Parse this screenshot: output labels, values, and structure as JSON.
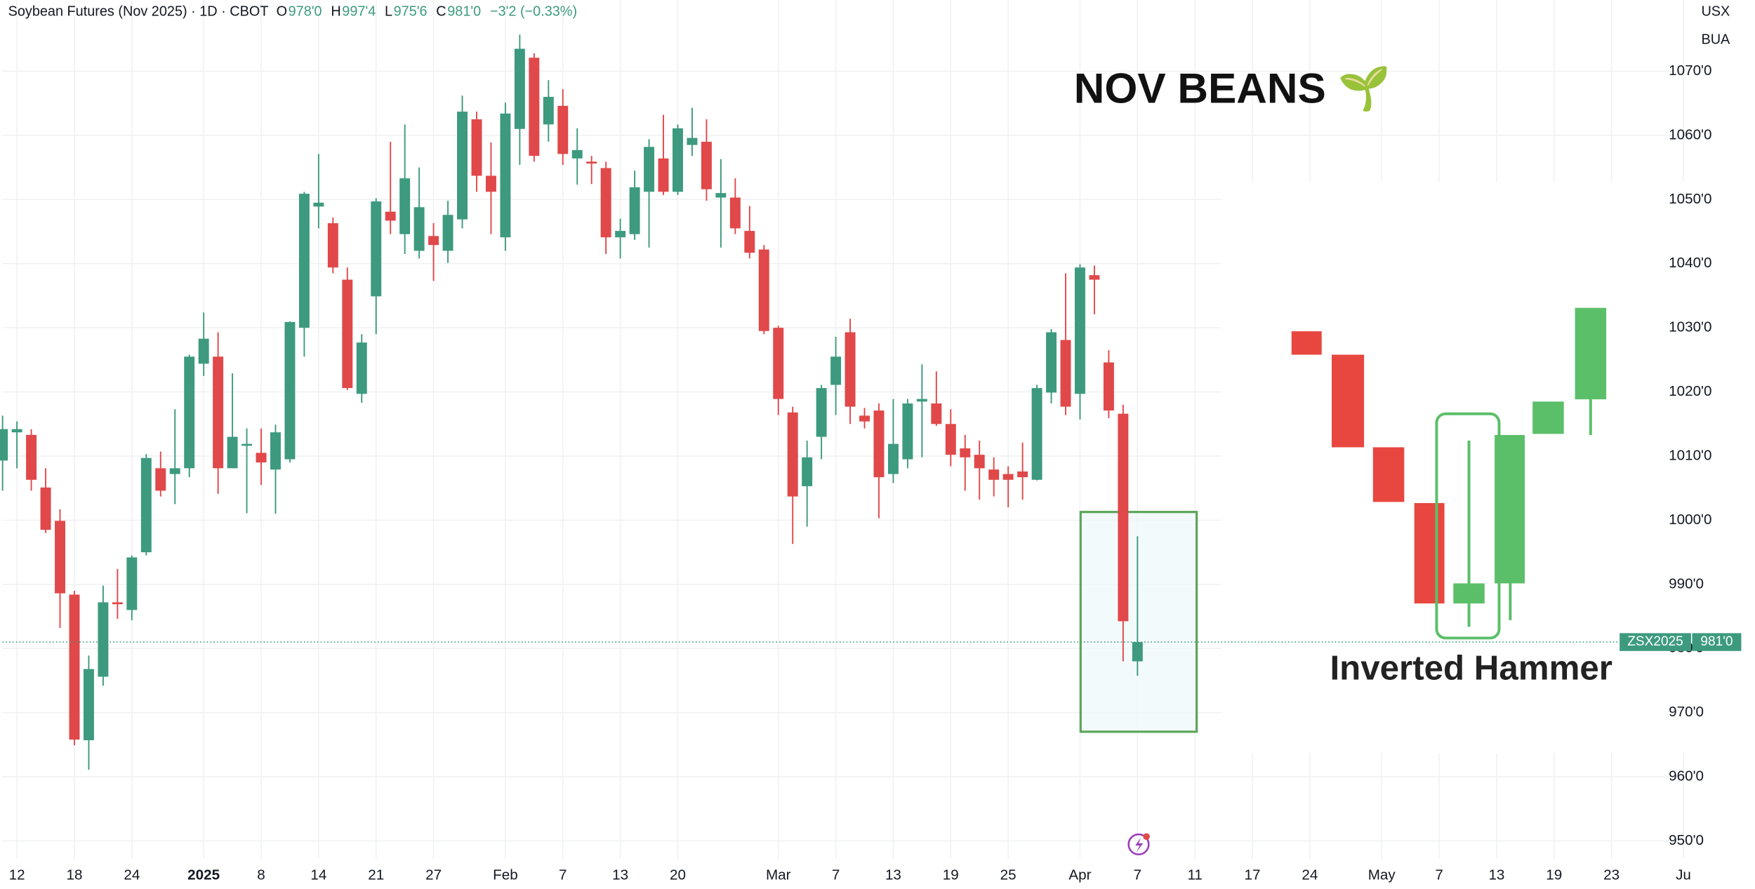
{
  "chart_data": {
    "type": "candlestick",
    "title": "Soybean Futures (Nov 2025) · 1D · CBOT",
    "ohlc_legend": [
      {
        "key": "O",
        "text": "978'0"
      },
      {
        "key": "H",
        "text": "997'4"
      },
      {
        "key": "L",
        "text": "975'6"
      },
      {
        "key": "C",
        "text": "981'0"
      }
    ],
    "change": "−3'2 (−0.33%)",
    "currency": "USX",
    "unit": "BUA",
    "annotation_title": "NOV BEANS 🌱",
    "annotation_pattern": "Inverted Hammer",
    "symbol_label": "ZSX2025",
    "last_price_label": "981'0",
    "up_color": "#3d9a7f",
    "down_color": "#e0484a",
    "grid": true,
    "xlim": [
      0,
      117.3
    ],
    "ylim": [
      947.2,
      1081.1
    ],
    "yticks": [
      {
        "value": 950,
        "label": "950'0"
      },
      {
        "value": 960,
        "label": "960'0"
      },
      {
        "value": 970,
        "label": "970'0"
      },
      {
        "value": 980,
        "label": "980'0"
      },
      {
        "value": 990,
        "label": "990'0"
      },
      {
        "value": 1000,
        "label": "1000'0"
      },
      {
        "value": 1010,
        "label": "1010'0"
      },
      {
        "value": 1020,
        "label": "1020'0"
      },
      {
        "value": 1030,
        "label": "1030'0"
      },
      {
        "value": 1040,
        "label": "1040'0"
      },
      {
        "value": 1050,
        "label": "1050'0"
      },
      {
        "value": 1060,
        "label": "1060'0"
      },
      {
        "value": 1070,
        "label": "1070'0"
      }
    ],
    "xticks": [
      {
        "value": 1,
        "label": "12"
      },
      {
        "value": 5,
        "label": "18"
      },
      {
        "value": 9,
        "label": "24"
      },
      {
        "value": 14,
        "label": "2025"
      },
      {
        "value": 18,
        "label": "8"
      },
      {
        "value": 22,
        "label": "14"
      },
      {
        "value": 26,
        "label": "21"
      },
      {
        "value": 30,
        "label": "27"
      },
      {
        "value": 35,
        "label": "Feb"
      },
      {
        "value": 39,
        "label": "7"
      },
      {
        "value": 43,
        "label": "13"
      },
      {
        "value": 47,
        "label": "20"
      },
      {
        "value": 54,
        "label": "Mar"
      },
      {
        "value": 58,
        "label": "7"
      },
      {
        "value": 62,
        "label": "13"
      },
      {
        "value": 66,
        "label": "19"
      },
      {
        "value": 70,
        "label": "25"
      },
      {
        "value": 75,
        "label": "Apr"
      },
      {
        "value": 79,
        "label": "7"
      },
      {
        "value": 83,
        "label": "11"
      },
      {
        "value": 87,
        "label": "17"
      },
      {
        "value": 91,
        "label": "24"
      },
      {
        "value": 96,
        "label": "May"
      },
      {
        "value": 100,
        "label": "7"
      },
      {
        "value": 104,
        "label": "13"
      },
      {
        "value": 108,
        "label": "19"
      },
      {
        "value": 112,
        "label": "23"
      },
      {
        "value": 117,
        "label": "Ju"
      }
    ],
    "x": [
      0,
      1,
      2,
      3,
      4,
      5,
      6,
      7,
      8,
      9,
      10,
      11,
      12,
      13,
      14,
      15,
      16,
      17,
      18,
      19,
      20,
      21,
      22,
      23,
      24,
      25,
      26,
      27,
      28,
      29,
      30,
      31,
      32,
      33,
      34,
      35,
      36,
      37,
      38,
      39,
      40,
      41,
      42,
      43,
      44,
      45,
      46,
      47,
      48,
      49,
      50,
      51,
      52,
      53,
      54,
      55,
      56,
      57,
      58,
      59,
      60,
      61,
      62,
      63,
      64,
      65,
      66,
      67,
      68,
      69,
      70,
      71,
      72,
      73,
      74,
      75,
      76,
      77,
      78,
      79
    ],
    "open": [
      1009.3,
      1013.7,
      1013.3,
      1005.1,
      999.9,
      988.4,
      965.7,
      975.6,
      987.2,
      986.0,
      995.0,
      1008.1,
      1007.2,
      1008.1,
      1024.4,
      1025.5,
      1008.1,
      1011.6,
      1010.5,
      1007.9,
      1009.5,
      1030.0,
      1048.9,
      1046.3,
      1037.5,
      1019.7,
      1034.9,
      1048.1,
      1044.6,
      1042.0,
      1044.3,
      1042.0,
      1046.9,
      1062.5,
      1053.7,
      1044.1,
      1061.0,
      1072.1,
      1061.7,
      1064.6,
      1056.4,
      1055.9,
      1054.9,
      1044.1,
      1044.6,
      1051.2,
      1056.4,
      1051.2,
      1058.5,
      1059.0,
      1050.3,
      1050.3,
      1045.1,
      1042.2,
      1030.0,
      1016.8,
      1005.3,
      1013.0,
      1021.1,
      1029.3,
      1016.3,
      1017.1,
      1007.2,
      1009.5,
      1018.5,
      1018.2,
      1015.0,
      1011.2,
      1010.2,
      1007.9,
      1007.2,
      1007.6,
      1006.3,
      1019.9,
      1028.1,
      1019.7,
      1038.2,
      1024.6,
      1016.6,
      978
    ],
    "high": [
      1016.3,
      1015.4,
      1014.2,
      1008.1,
      1001.7,
      989.0,
      978.9,
      989.8,
      992.4,
      994.5,
      1010.3,
      1010.7,
      1017.3,
      1025.8,
      1032.4,
      1029.3,
      1022.9,
      1014.3,
      1014.3,
      1014.9,
      1031.0,
      1051.2,
      1057.1,
      1047.2,
      1039.4,
      1029.0,
      1050.2,
      1059.0,
      1061.7,
      1055.0,
      1046.3,
      1049.8,
      1066.2,
      1063.7,
      1058.9,
      1065.1,
      1075.7,
      1072.8,
      1068.6,
      1067.2,
      1061.1,
      1056.8,
      1055.9,
      1047.0,
      1054.5,
      1059.4,
      1063.2,
      1061.7,
      1064.3,
      1062.5,
      1056.3,
      1053.3,
      1049.0,
      1042.9,
      1030.3,
      1017.7,
      1012.4,
      1021.1,
      1028.6,
      1031.4,
      1017.5,
      1018.2,
      1018.9,
      1018.9,
      1024.3,
      1023.2,
      1017.3,
      1013.3,
      1012.4,
      1009.8,
      1008.4,
      1012.1,
      1021.1,
      1029.8,
      1038.5,
      1039.9,
      1039.7,
      1026.5,
      1018.0,
      997.5
    ],
    "low": [
      1004.6,
      1008.1,
      1004.6,
      998.0,
      983.2,
      964.9,
      961.1,
      974.2,
      984.6,
      984.4,
      994.5,
      1003.7,
      1002.5,
      1006.7,
      1022.5,
      1004.1,
      1008.1,
      1001.1,
      1005.5,
      1001.0,
      1009.0,
      1025.5,
      1045.5,
      1038.5,
      1020.3,
      1018.3,
      1029.0,
      1044.6,
      1041.5,
      1040.8,
      1037.3,
      1040.1,
      1045.5,
      1051.2,
      1044.6,
      1042.0,
      1055.4,
      1055.9,
      1059.0,
      1055.4,
      1052.3,
      1052.4,
      1041.5,
      1040.8,
      1043.7,
      1042.5,
      1050.7,
      1050.7,
      1056.8,
      1049.8,
      1042.5,
      1044.6,
      1040.8,
      1029.0,
      1016.4,
      996.3,
      999.0,
      1009.5,
      1016.4,
      1015.0,
      1014.3,
      1000.3,
      1005.8,
      1008.1,
      1009.8,
      1014.7,
      1008.4,
      1004.6,
      1003.2,
      1003.7,
      1002.0,
      1003.2,
      1006.2,
      1018.2,
      1016.4,
      1015.7,
      1032.1,
      1015.9,
      978.0,
      975.75
    ],
    "close": [
      1014.2,
      1014.2,
      1006.3,
      998.5,
      988.6,
      965.8,
      976.8,
      987.2,
      986.9,
      994.2,
      1009.7,
      1004.6,
      1008.1,
      1025.5,
      1028.3,
      1008.1,
      1013.0,
      1011.9,
      1009.0,
      1013.7,
      1030.9,
      1050.9,
      1049.5,
      1039.4,
      1020.6,
      1027.7,
      1049.7,
      1046.7,
      1053.3,
      1048.8,
      1042.9,
      1047.6,
      1063.7,
      1053.7,
      1051.2,
      1063.4,
      1073.5,
      1056.8,
      1066.0,
      1057.1,
      1057.7,
      1055.6,
      1044.1,
      1045.1,
      1051.9,
      1058.2,
      1051.2,
      1061.1,
      1059.6,
      1051.6,
      1051.0,
      1045.5,
      1041.7,
      1029.5,
      1018.9,
      1003.7,
      1009.8,
      1020.6,
      1025.5,
      1017.7,
      1015.4,
      1006.7,
      1011.9,
      1018.2,
      1018.9,
      1015.0,
      1010.2,
      1009.8,
      1008.1,
      1006.3,
      1006.3,
      1006.7,
      1020.6,
      1029.3,
      1017.7,
      1039.4,
      1037.5,
      1017.1,
      984.25,
      981
    ]
  }
}
